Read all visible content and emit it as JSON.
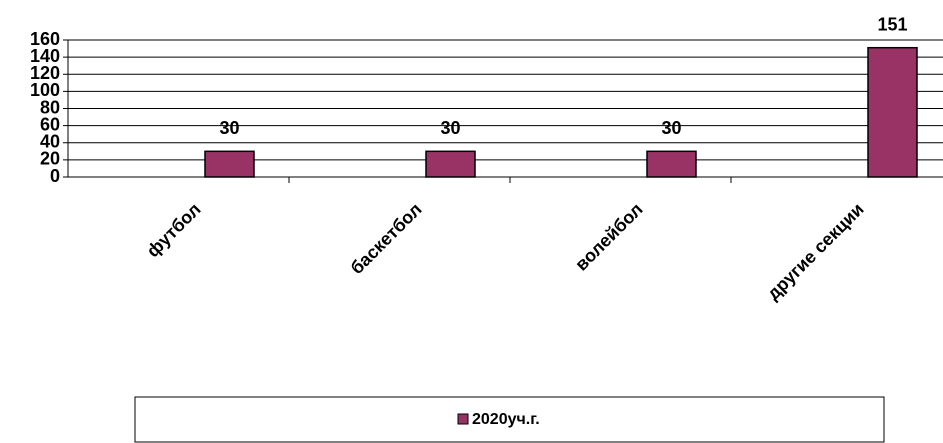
{
  "chart_data": {
    "type": "bar",
    "categories": [
      "футбол",
      "баскетбол",
      "волейбол",
      "другие секции"
    ],
    "series": [
      {
        "name": "2020уч.г.",
        "color": "#993366",
        "values": [
          30,
          30,
          30,
          151
        ]
      }
    ],
    "ylim": [
      0,
      160
    ],
    "yticks": [
      0,
      20,
      40,
      60,
      80,
      100,
      120,
      140,
      160
    ],
    "grid": true,
    "legend": "bottom"
  }
}
